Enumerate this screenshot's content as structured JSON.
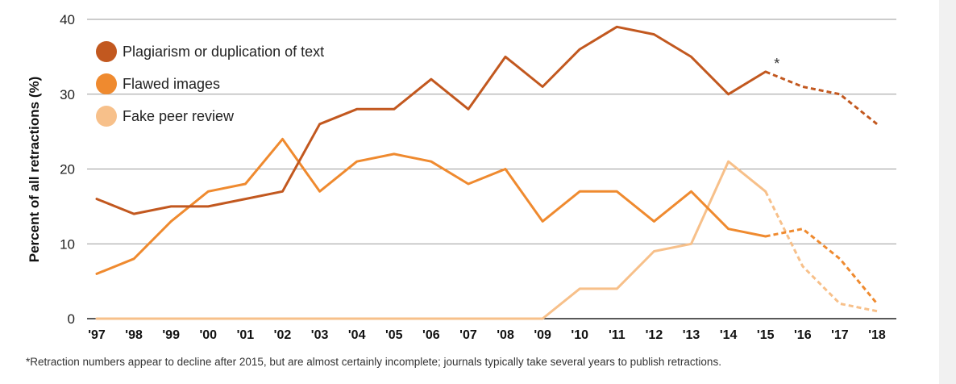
{
  "chart_data": {
    "type": "line",
    "title": "",
    "xlabel": "",
    "ylabel": "Percent of all retractions (%)",
    "ylim": [
      0,
      40
    ],
    "yticks": [
      "0",
      "10",
      "20",
      "30",
      "40"
    ],
    "categories": [
      "'97",
      "'98",
      "'99",
      "'00",
      "'01",
      "'02",
      "'03",
      "'04",
      "'05",
      "'06",
      "'07",
      "'08",
      "'09",
      "'10",
      "'11",
      "'12",
      "'13",
      "'14",
      "'15",
      "'16",
      "'17",
      "'18"
    ],
    "grid": true,
    "legend_position": "top-left",
    "dashed_after": "'15",
    "series": [
      {
        "name": "Plagiarism or duplication of text",
        "color": "#c2581f",
        "values": [
          16,
          14,
          15,
          15,
          16,
          17,
          26,
          28,
          28,
          32,
          28,
          35,
          31,
          36,
          39,
          38,
          35,
          30,
          33,
          31,
          30,
          26
        ]
      },
      {
        "name": "Flawed images",
        "color": "#ef8a2f",
        "values": [
          6,
          8,
          13,
          17,
          18,
          24,
          17,
          21,
          22,
          21,
          18,
          20,
          13,
          17,
          17,
          13,
          17,
          12,
          11,
          12,
          8,
          2
        ]
      },
      {
        "name": "Fake peer review",
        "color": "#f7c08a",
        "values": [
          0,
          0,
          0,
          0,
          0,
          0,
          0,
          0,
          0,
          0,
          0,
          0,
          0,
          4,
          4,
          9,
          10,
          21,
          17,
          7,
          2,
          1
        ]
      }
    ],
    "annotation": "*"
  },
  "footnote": "*Retraction numbers appear to decline after 2015, but are almost certainly incomplete; journals typically take several years to publish retractions."
}
